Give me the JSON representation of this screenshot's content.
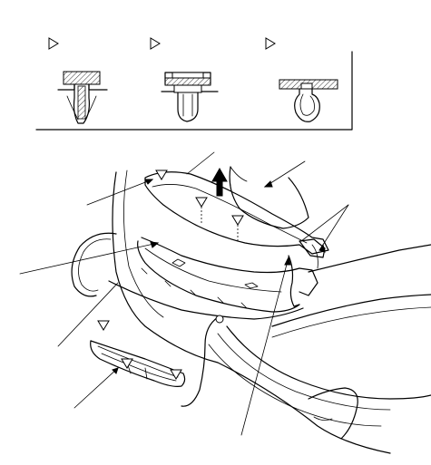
{
  "diagram": {
    "legend": {
      "clips": [
        {
          "name": "clip-type-a",
          "marker": "triangle-icon"
        },
        {
          "name": "clip-type-b",
          "marker": "triangle-icon"
        },
        {
          "name": "clip-type-c",
          "marker": "triangle-icon"
        }
      ]
    },
    "main": {
      "callout_count": 6,
      "clip_markers": 6,
      "arrow_direction": "up"
    }
  }
}
